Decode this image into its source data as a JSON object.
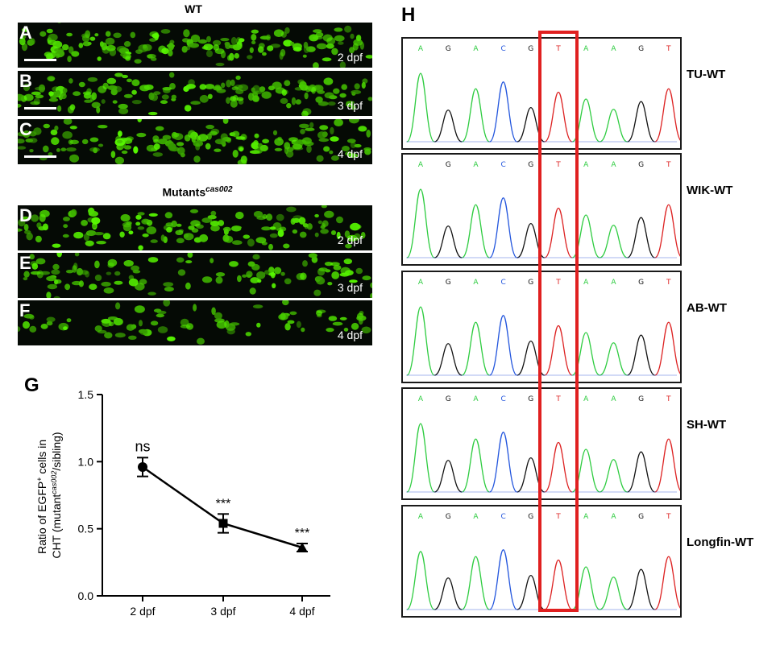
{
  "panels": {
    "A": "A",
    "B": "B",
    "C": "C",
    "D": "D",
    "E": "E",
    "F": "F",
    "G": "G",
    "H": "H"
  },
  "wt_group": {
    "title": "WT",
    "images": [
      {
        "letter": "A",
        "day": "2 dpf",
        "scalebar": true,
        "density": 1.0
      },
      {
        "letter": "B",
        "day": "3 dpf",
        "scalebar": true,
        "density": 1.0
      },
      {
        "letter": "C",
        "day": "4 dpf",
        "scalebar": true,
        "density": 1.0
      }
    ]
  },
  "mutant_group": {
    "title": "Mutants",
    "title_sup": "cas002",
    "images": [
      {
        "letter": "D",
        "day": "2 dpf",
        "scalebar": false,
        "density": 0.9
      },
      {
        "letter": "E",
        "day": "3 dpf",
        "scalebar": false,
        "density": 0.7
      },
      {
        "letter": "F",
        "day": "4 dpf",
        "scalebar": false,
        "density": 0.5
      }
    ]
  },
  "chart_data": {
    "type": "scatter",
    "title": "",
    "ylabel_line1": "Ratio of EGFP",
    "ylabel_line1_sup": "+",
    "ylabel_line1_end": " cells in",
    "ylabel_line2": "CHT (mutant",
    "ylabel_line2_sup": "cas002",
    "ylabel_line2_end": "/sibling)",
    "categories": [
      "2 dpf",
      "3 dpf",
      "4 dpf"
    ],
    "values": [
      0.96,
      0.54,
      0.36
    ],
    "errors": [
      0.07,
      0.07,
      0.03
    ],
    "markers": [
      "circle",
      "square",
      "triangle"
    ],
    "significance": [
      "ns",
      "***",
      "***"
    ],
    "ylim": [
      0.0,
      1.5
    ],
    "yticks": [
      0.0,
      0.5,
      1.0,
      1.5
    ],
    "ytick_labels": [
      "0.0",
      "0.5",
      "1.0",
      "1.5"
    ]
  },
  "chromatograms": {
    "bases": [
      "A",
      "G",
      "A",
      "C",
      "G",
      "T",
      "A",
      "A",
      "G",
      "T"
    ],
    "base_colors": {
      "A": "#2ecc40",
      "G": "#111111",
      "C": "#2255dd",
      "T": "#dd2222"
    },
    "highlight_index": 5,
    "highlight_color": "#e02020",
    "strains": [
      "TU-WT",
      "WIK-WT",
      "AB-WT",
      "SH-WT",
      "Longfin-WT"
    ]
  }
}
